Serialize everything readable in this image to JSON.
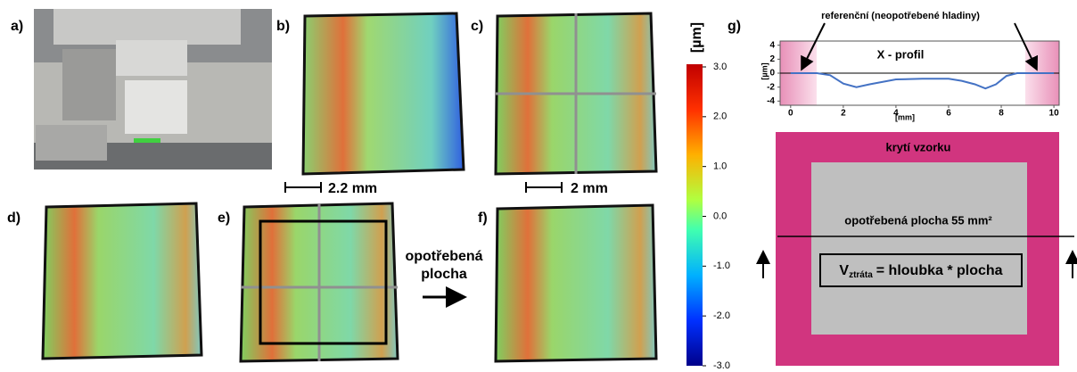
{
  "panels": {
    "a": "a)",
    "b": "b)",
    "c": "c)",
    "d": "d)",
    "e": "e)",
    "f": "f)",
    "g": "g)"
  },
  "scale_bars": [
    "2.2 mm",
    "2 mm"
  ],
  "worn_arrow": {
    "line1": "opotřebená",
    "line2": "plocha"
  },
  "colorbar": {
    "unit": "[µm]",
    "ticks": [
      "3.0",
      "2.0",
      "1.0",
      "0.0",
      "-1.0",
      "-2.0",
      "-3.0"
    ]
  },
  "chart_data": {
    "type": "line",
    "title": "X - profil",
    "annotation": "referenční (neopotřebené hladiny)",
    "x_label": "[mm]",
    "y_label": "[µm]",
    "x": [
      0,
      1,
      1.5,
      2,
      2.5,
      3,
      4,
      5,
      6,
      6.5,
      7,
      7.4,
      7.8,
      8.2,
      8.6,
      9,
      10
    ],
    "series": [
      {
        "color": "#4472c4",
        "values": [
          0,
          0,
          -0.3,
          -1.5,
          -2,
          -1.6,
          -0.9,
          -0.8,
          -0.8,
          -1.1,
          -1.6,
          -2.2,
          -1.6,
          -0.4,
          0,
          0,
          0
        ]
      }
    ],
    "xlim": [
      -0.4,
      10.2
    ],
    "xticks": [
      0,
      2,
      4,
      6,
      8,
      10
    ],
    "ylim": [
      -4.6,
      4.6
    ],
    "yticks": [
      4,
      2,
      0,
      -2,
      -4
    ]
  },
  "schematic": {
    "cover": "krytí vzorku",
    "worn_area": "opotřebená plocha 55 mm²",
    "formula": {
      "v": "V",
      "sub": "ztráta",
      "rest": "= hloubka * plocha"
    }
  }
}
